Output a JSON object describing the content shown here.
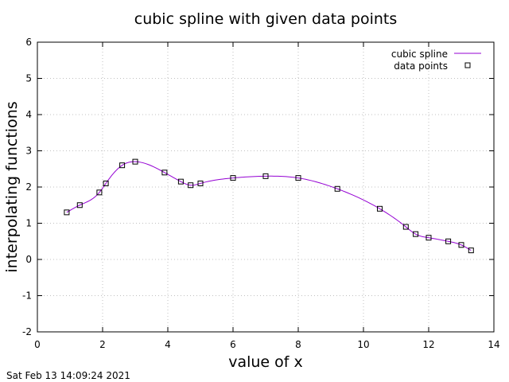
{
  "chart_data": {
    "type": "line",
    "title": "cubic spline with given data points",
    "xlabel": "value of x",
    "ylabel": "interpolating functions",
    "xlim": [
      0,
      14
    ],
    "ylim": [
      -2,
      6
    ],
    "x_ticks": [
      "0",
      "2",
      "4",
      "6",
      "8",
      "10",
      "12",
      "14"
    ],
    "y_ticks": [
      "-2",
      "-1",
      "0",
      "1",
      "2",
      "3",
      "4",
      "5",
      "6"
    ],
    "grid": true,
    "legend_position": "top-right",
    "series": [
      {
        "name": "cubic spline",
        "style": "line",
        "color": "#9400d3"
      },
      {
        "name": "data points",
        "style": "markers",
        "marker": "open-square",
        "color": "#000000",
        "x": [
          0.9,
          1.3,
          1.9,
          2.1,
          2.6,
          3.0,
          3.9,
          4.4,
          4.7,
          5.0,
          6.0,
          7.0,
          8.0,
          9.2,
          10.5,
          11.3,
          11.6,
          12.0,
          12.6,
          13.0,
          13.3
        ],
        "y": [
          1.3,
          1.5,
          1.85,
          2.1,
          2.6,
          2.7,
          2.4,
          2.15,
          2.05,
          2.1,
          2.25,
          2.3,
          2.25,
          1.95,
          1.4,
          0.9,
          0.7,
          0.6,
          0.5,
          0.4,
          0.25
        ]
      }
    ]
  },
  "footer": {
    "timestamp": "Sat Feb 13 14:09:24 2021"
  }
}
